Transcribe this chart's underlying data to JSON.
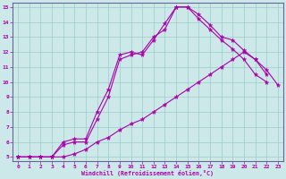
{
  "xlabel": "Windchill (Refroidissement éolien,°C)",
  "bg_color": "#cce8e8",
  "line_color": "#aa00aa",
  "grid_color": "#99cccc",
  "spine_color": "#666699",
  "xlim": [
    -0.5,
    23.5
  ],
  "ylim": [
    4.7,
    15.3
  ],
  "xticks": [
    0,
    1,
    2,
    3,
    4,
    5,
    6,
    7,
    8,
    9,
    10,
    11,
    12,
    13,
    14,
    15,
    16,
    17,
    18,
    19,
    20,
    21,
    22,
    23
  ],
  "yticks": [
    5,
    6,
    7,
    8,
    9,
    10,
    11,
    12,
    13,
    14,
    15
  ],
  "line1_x": [
    0,
    1,
    2,
    3,
    4,
    5,
    6,
    7,
    8,
    9,
    10,
    11,
    12,
    13,
    14,
    15,
    16,
    17,
    18,
    19,
    20,
    21,
    22
  ],
  "line1_y": [
    5,
    5,
    5,
    5,
    6.0,
    6.2,
    6.2,
    8.0,
    9.5,
    11.8,
    12.0,
    11.8,
    12.8,
    13.9,
    15.0,
    15.0,
    14.2,
    13.5,
    12.8,
    12.2,
    11.5,
    10.5,
    10.0
  ],
  "line2_x": [
    0,
    1,
    2,
    3,
    4,
    5,
    6,
    7,
    8,
    9,
    10,
    11,
    12,
    13,
    14,
    15,
    16,
    17,
    18,
    19,
    20,
    21,
    22
  ],
  "line2_y": [
    5,
    5,
    5,
    5,
    5.8,
    6.0,
    6.0,
    7.5,
    9.0,
    11.5,
    11.8,
    12.0,
    13.0,
    13.5,
    15.0,
    15.0,
    14.5,
    13.8,
    13.0,
    12.8,
    12.1,
    11.5,
    10.5
  ],
  "line3_x": [
    0,
    1,
    2,
    3,
    4,
    5,
    6,
    7,
    8,
    9,
    10,
    11,
    12,
    13,
    14,
    15,
    16,
    17,
    18,
    19,
    20,
    21,
    22,
    23
  ],
  "line3_y": [
    5,
    5,
    5,
    5,
    5,
    5.2,
    5.5,
    6.0,
    6.3,
    6.8,
    7.2,
    7.5,
    8.0,
    8.5,
    9.0,
    9.5,
    10.0,
    10.5,
    11.0,
    11.5,
    12.0,
    11.5,
    10.8,
    9.8
  ]
}
